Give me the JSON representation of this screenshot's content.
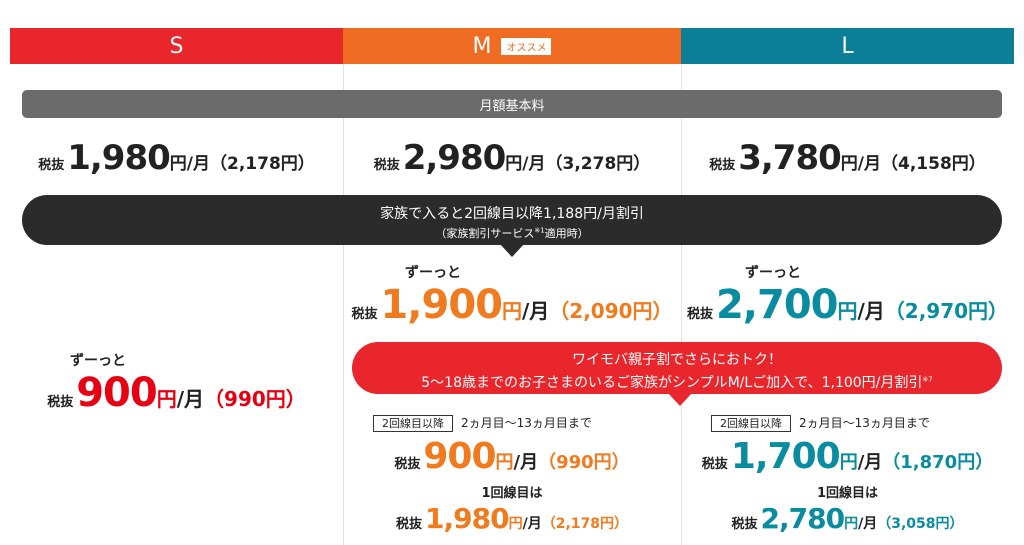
{
  "header": {
    "plans": [
      "S",
      "M",
      "L"
    ],
    "recommend_badge": "オススメ"
  },
  "base_fee": {
    "label": "月額基本料",
    "prices": [
      {
        "tax_label": "税抜",
        "amount": "1,980",
        "yen": "円",
        "per_month": "/月",
        "tax_included": "（2,178円）"
      },
      {
        "tax_label": "税抜",
        "amount": "2,980",
        "yen": "円",
        "per_month": "/月",
        "tax_included": "（3,278円）"
      },
      {
        "tax_label": "税抜",
        "amount": "3,780",
        "yen": "円",
        "per_month": "/月",
        "tax_included": "（4,158円）"
      }
    ]
  },
  "family_discount": {
    "line1": "家族で入ると2回線目以降1,188円/月割引",
    "line2": "（家族割引サービス",
    "note": "※1",
    "line2_end": "適用時）"
  },
  "discounted": [
    {
      "lead": "ずーっと",
      "tax_label": "税抜",
      "amount": "900",
      "yen": "円",
      "per_month": "/月",
      "tax_included": "（990円）"
    },
    {
      "lead": "ずーっと",
      "tax_label": "税抜",
      "amount": "1,900",
      "yen": "円",
      "per_month": "/月",
      "tax_included": "（2,090円）"
    },
    {
      "lead": "ずーっと",
      "tax_label": "税抜",
      "amount": "2,700",
      "yen": "円",
      "per_month": "/月",
      "tax_included": "（2,970円）"
    }
  ],
  "kids_discount": {
    "line1": "ワイモバ親子割でさらにおトク！",
    "line2": "5〜18歳までのお子さまのいるご家族がシンプルM/Lご加入で、1,100円/月割引",
    "note": "※7"
  },
  "kids_prices": [
    {
      "badge": "2回線目以降",
      "period": "2ヵ月目〜13ヵ月目まで",
      "price": {
        "tax_label": "税抜",
        "amount": "900",
        "yen": "円",
        "per_month": "/月",
        "tax_included": "（990円）"
      },
      "first_line_label": "1回線目は",
      "first_line_price": {
        "tax_label": "税抜",
        "amount": "1,980",
        "yen": "円",
        "per_month": "/月",
        "tax_included": "（2,178円）"
      }
    },
    {
      "badge": "2回線目以降",
      "period": "2ヵ月目〜13ヵ月目まで",
      "price": {
        "tax_label": "税抜",
        "amount": "1,700",
        "yen": "円",
        "per_month": "/月",
        "tax_included": "（1,870円）"
      },
      "first_line_label": "1回線目は",
      "first_line_price": {
        "tax_label": "税抜",
        "amount": "2,780",
        "yen": "円",
        "per_month": "/月",
        "tax_included": "（3,058円）"
      }
    }
  ]
}
